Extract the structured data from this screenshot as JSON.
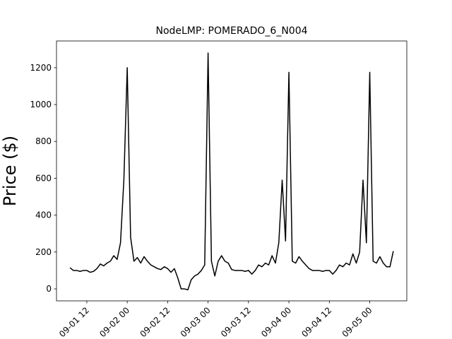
{
  "chart_data": {
    "type": "line",
    "title": "NodeLMP: POMERADO_6_N004",
    "y_label": "Price ($)",
    "x": [
      "09-01 07",
      "09-01 08",
      "09-01 09",
      "09-01 10",
      "09-01 11",
      "09-01 12",
      "09-01 13",
      "09-01 14",
      "09-01 15",
      "09-01 16",
      "09-01 17",
      "09-01 18",
      "09-01 19",
      "09-01 20",
      "09-01 21",
      "09-01 22",
      "09-01 23",
      "09-02 00",
      "09-02 01",
      "09-02 02",
      "09-02 03",
      "09-02 04",
      "09-02 05",
      "09-02 06",
      "09-02 07",
      "09-02 08",
      "09-02 09",
      "09-02 10",
      "09-02 11",
      "09-02 12",
      "09-02 13",
      "09-02 14",
      "09-02 15",
      "09-02 16",
      "09-02 17",
      "09-02 18",
      "09-02 19",
      "09-02 20",
      "09-02 21",
      "09-02 22",
      "09-02 23",
      "09-03 00",
      "09-03 01",
      "09-03 02",
      "09-03 03",
      "09-03 04",
      "09-03 05",
      "09-03 06",
      "09-03 07",
      "09-03 08",
      "09-03 09",
      "09-03 10",
      "09-03 11",
      "09-03 12",
      "09-03 13",
      "09-03 14",
      "09-03 15",
      "09-03 16",
      "09-03 17",
      "09-03 18",
      "09-03 19",
      "09-03 20",
      "09-03 21",
      "09-03 22",
      "09-03 23",
      "09-04 00",
      "09-04 01",
      "09-04 02",
      "09-04 03",
      "09-04 04",
      "09-04 05",
      "09-04 06",
      "09-04 07",
      "09-04 08",
      "09-04 09",
      "09-04 10",
      "09-04 11",
      "09-04 12",
      "09-04 13",
      "09-04 14",
      "09-04 15",
      "09-04 16",
      "09-04 17",
      "09-04 18",
      "09-04 19",
      "09-04 20",
      "09-04 21",
      "09-04 22",
      "09-04 23",
      "09-05 00",
      "09-05 01",
      "09-05 02",
      "09-05 03",
      "09-05 04",
      "09-05 05",
      "09-05 06",
      "09-05 07"
    ],
    "series": [
      {
        "color": "#000000",
        "values": [
          115,
          100,
          100,
          95,
          100,
          100,
          90,
          95,
          110,
          135,
          125,
          140,
          150,
          180,
          160,
          250,
          590,
          1200,
          280,
          150,
          170,
          140,
          175,
          150,
          130,
          120,
          110,
          105,
          120,
          110,
          90,
          110,
          60,
          0,
          0,
          -5,
          50,
          70,
          80,
          100,
          130,
          1280,
          150,
          70,
          150,
          180,
          150,
          140,
          105,
          100,
          100,
          100,
          95,
          100,
          80,
          100,
          130,
          120,
          140,
          130,
          180,
          140,
          250,
          590,
          260,
          1175,
          150,
          140,
          175,
          150,
          130,
          110,
          100,
          100,
          100,
          95,
          100,
          100,
          80,
          100,
          130,
          120,
          140,
          130,
          190,
          140,
          200,
          590,
          250,
          1175,
          150,
          140,
          175,
          140,
          120,
          120,
          205
        ]
      }
    ],
    "xlim": [
      "09-01 03",
      "09-05 11"
    ],
    "xticks": [
      "09-01 12",
      "09-02 00",
      "09-02 12",
      "09-03 00",
      "09-03 12",
      "09-04 00",
      "09-04 12",
      "09-05 00"
    ],
    "ylim": [
      -65,
      1345
    ],
    "yticks": [
      0,
      200,
      400,
      600,
      800,
      1000,
      1200
    ]
  }
}
